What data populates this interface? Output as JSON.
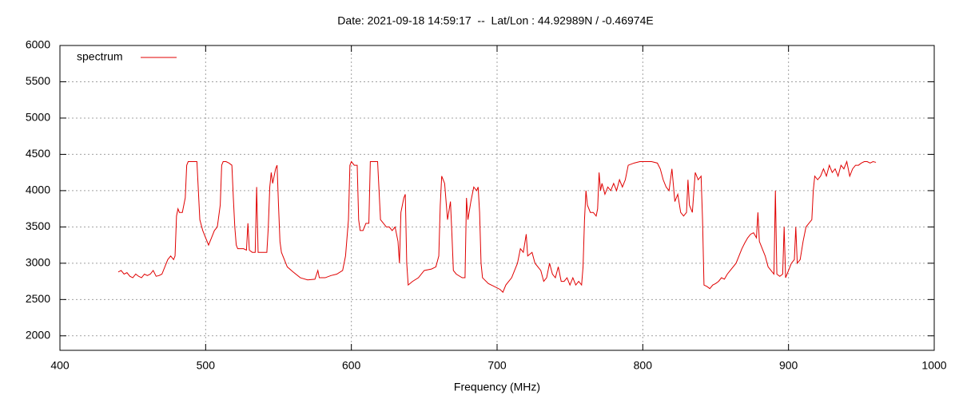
{
  "chart_data": {
    "type": "line",
    "title": "Date: 2021-09-18 14:59:17  --  Lat/Lon : 44.92989N / -0.46974E",
    "x_label": "Frequency (MHz)",
    "xlim": [
      400,
      1000
    ],
    "xticks": [
      400,
      500,
      600,
      700,
      800,
      900,
      1000
    ],
    "ylim": [
      1800,
      6000
    ],
    "yticks": [
      2000,
      2500,
      3000,
      3500,
      4000,
      4500,
      5000,
      5500,
      6000
    ],
    "grid": true,
    "legend": "top-left",
    "x": [
      440,
      442,
      444,
      446,
      448,
      450,
      452,
      454,
      456,
      458,
      460,
      462,
      464,
      466,
      468,
      470,
      472,
      474,
      476,
      478,
      479,
      480,
      481,
      482,
      484,
      486,
      487,
      488,
      490,
      492,
      494,
      495,
      496,
      498,
      500,
      502,
      504,
      506,
      508,
      510,
      511,
      512,
      514,
      516,
      518,
      519,
      520,
      521,
      522,
      524,
      526,
      528,
      529,
      530,
      532,
      534,
      535,
      536,
      538,
      540,
      542,
      543,
      544,
      545,
      546,
      548,
      549,
      550,
      551,
      552,
      554,
      556,
      560,
      565,
      570,
      575,
      577,
      578,
      582,
      586,
      590,
      594,
      596,
      598,
      599,
      600,
      602,
      604,
      605,
      606,
      608,
      610,
      612,
      613,
      616,
      618,
      619,
      620,
      622,
      624,
      626,
      628,
      630,
      632,
      633,
      634,
      636,
      637,
      638,
      639,
      642,
      646,
      650,
      655,
      658,
      660,
      661,
      662,
      664,
      666,
      668,
      669,
      670,
      672,
      676,
      678,
      679,
      680,
      682,
      684,
      686,
      687,
      688,
      689,
      690,
      694,
      698,
      702,
      704,
      706,
      710,
      714,
      716,
      718,
      720,
      721,
      724,
      726,
      730,
      732,
      734,
      736,
      738,
      740,
      742,
      744,
      746,
      748,
      750,
      752,
      754,
      756,
      758,
      759,
      760,
      761,
      762,
      764,
      766,
      768,
      769,
      770,
      771,
      772,
      774,
      776,
      778,
      780,
      782,
      784,
      786,
      788,
      790,
      794,
      798,
      802,
      806,
      810,
      812,
      814,
      816,
      818,
      820,
      822,
      824,
      826,
      828,
      830,
      831,
      832,
      834,
      836,
      838,
      840,
      841,
      842,
      844,
      846,
      848,
      850,
      852,
      854,
      856,
      858,
      860,
      862,
      864,
      866,
      868,
      870,
      872,
      874,
      876,
      878,
      879,
      880,
      882,
      884,
      886,
      888,
      890,
      891,
      892,
      894,
      896,
      897,
      898,
      900,
      902,
      904,
      905,
      906,
      908,
      910,
      912,
      914,
      916,
      917,
      918,
      920,
      922,
      924,
      926,
      928,
      930,
      932,
      934,
      936,
      938,
      940,
      942,
      944,
      946,
      948,
      950,
      952,
      954,
      956,
      958,
      960
    ],
    "series": [
      {
        "name": "spectrum",
        "color": "#e00000",
        "values": [
          2880,
          2900,
          2850,
          2870,
          2820,
          2800,
          2850,
          2820,
          2800,
          2850,
          2830,
          2850,
          2900,
          2820,
          2830,
          2850,
          2950,
          3050,
          3100,
          3050,
          3100,
          3650,
          3750,
          3700,
          3700,
          3900,
          4350,
          4400,
          4400,
          4400,
          4400,
          4000,
          3600,
          3450,
          3350,
          3250,
          3350,
          3450,
          3500,
          3800,
          4350,
          4400,
          4400,
          4380,
          4350,
          3900,
          3500,
          3250,
          3200,
          3200,
          3200,
          3180,
          3550,
          3180,
          3150,
          3150,
          4050,
          3150,
          3150,
          3150,
          3150,
          3500,
          4050,
          4250,
          4100,
          4300,
          4350,
          3800,
          3300,
          3150,
          3050,
          2950,
          2880,
          2800,
          2770,
          2780,
          2900,
          2800,
          2800,
          2830,
          2850,
          2900,
          3100,
          3600,
          4350,
          4400,
          4350,
          4350,
          3600,
          3450,
          3450,
          3550,
          3550,
          4400,
          4400,
          4400,
          4000,
          3600,
          3550,
          3500,
          3500,
          3450,
          3500,
          3300,
          3000,
          3700,
          3900,
          3950,
          3000,
          2700,
          2750,
          2800,
          2900,
          2920,
          2950,
          3100,
          3800,
          4200,
          4100,
          3600,
          3850,
          3400,
          2900,
          2850,
          2800,
          2800,
          3900,
          3600,
          3850,
          4050,
          4000,
          4050,
          3700,
          3000,
          2800,
          2720,
          2680,
          2640,
          2600,
          2700,
          2800,
          3000,
          3200,
          3150,
          3400,
          3100,
          3150,
          3000,
          2900,
          2750,
          2800,
          3000,
          2850,
          2800,
          2950,
          2750,
          2750,
          2800,
          2700,
          2800,
          2700,
          2750,
          2700,
          2950,
          3600,
          4000,
          3800,
          3700,
          3700,
          3650,
          3750,
          4250,
          4000,
          4100,
          3950,
          4050,
          4000,
          4100,
          4000,
          4150,
          4050,
          4150,
          4350,
          4380,
          4400,
          4400,
          4400,
          4380,
          4300,
          4150,
          4050,
          4000,
          4300,
          3850,
          3950,
          3700,
          3650,
          3700,
          4150,
          3800,
          3700,
          4250,
          4150,
          4200,
          3600,
          2700,
          2680,
          2650,
          2700,
          2720,
          2750,
          2800,
          2780,
          2850,
          2900,
          2950,
          3000,
          3100,
          3200,
          3280,
          3350,
          3400,
          3420,
          3350,
          3700,
          3300,
          3200,
          3100,
          2950,
          2900,
          2850,
          4000,
          2850,
          2820,
          2850,
          3500,
          2800,
          2900,
          3000,
          3050,
          3500,
          3000,
          3050,
          3300,
          3500,
          3550,
          3600,
          4000,
          4200,
          4150,
          4200,
          4300,
          4200,
          4350,
          4250,
          4300,
          4200,
          4350,
          4300,
          4400,
          4200,
          4300,
          4350,
          4350,
          4380,
          4400,
          4400,
          4380,
          4400,
          4390
        ]
      }
    ]
  }
}
